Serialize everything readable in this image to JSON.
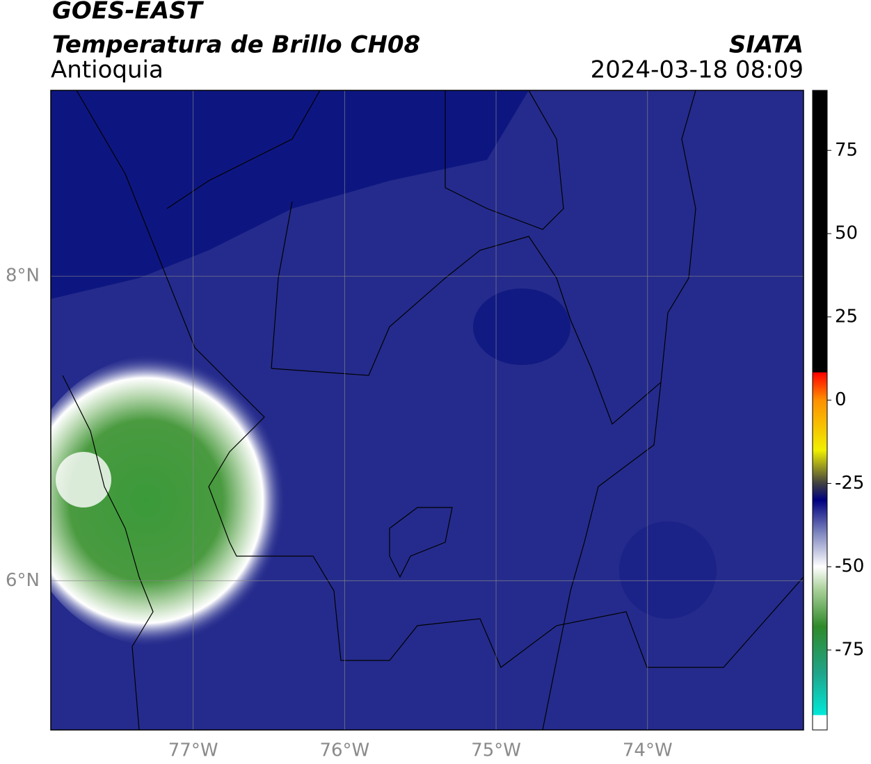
{
  "header": {
    "title": "GOES-EAST",
    "subtitle": "Temperatura de Brillo CH08",
    "region": "Antioquia",
    "source": "SIATA",
    "datetime": "2024-03-18 08:09"
  },
  "map": {
    "lonlim": [
      -77.94,
      -72.97
    ],
    "latlim": [
      5.02,
      9.22
    ],
    "lonticks": [
      {
        "value": -77,
        "label": "77°W"
      },
      {
        "value": -76,
        "label": "76°W"
      },
      {
        "value": -75,
        "label": "75°W"
      },
      {
        "value": -74,
        "label": "74°W"
      }
    ],
    "latticks": [
      {
        "value": 8,
        "label": "8°N"
      },
      {
        "value": 6,
        "label": "6°N"
      }
    ],
    "grid": true
  },
  "colorbar": {
    "lim": [
      -99,
      93
    ],
    "ticks": [
      75,
      50,
      25,
      0,
      -25,
      -50,
      -75
    ],
    "colormap": [
      {
        "value": -99,
        "color": "#ffffff"
      },
      {
        "value": -94.6,
        "color": "#ffffff"
      },
      {
        "value": -94.5,
        "color": "#00e8d8"
      },
      {
        "value": -82,
        "color": "#1fa58a"
      },
      {
        "value": -68,
        "color": "#2f8a2a"
      },
      {
        "value": -57,
        "color": "#a8d098"
      },
      {
        "value": -50,
        "color": "#ffffff"
      },
      {
        "value": -40,
        "color": "#8088c0"
      },
      {
        "value": -30,
        "color": "#000080"
      },
      {
        "value": -25,
        "color": "#404040"
      },
      {
        "value": -15,
        "color": "#f0f000"
      },
      {
        "value": 0,
        "color": "#ff9000"
      },
      {
        "value": 8.3,
        "color": "#ff0000"
      },
      {
        "value": 8.4,
        "color": "#000000"
      },
      {
        "value": 93,
        "color": "#000000"
      }
    ]
  }
}
